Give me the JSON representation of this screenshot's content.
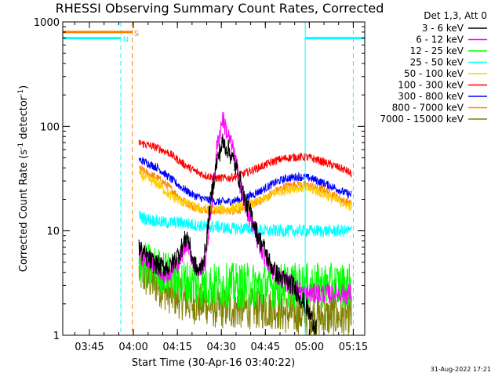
{
  "chart_data": {
    "type": "line",
    "title": "RHESSI Observing Summary Count Rates, Corrected",
    "xlabel": "Start Time (30-Apr-16 03:40:22)",
    "ylabel_main": "Corrected Count Rate (s",
    "ylabel_sup1": "-1",
    "ylabel_mid": " detector",
    "ylabel_sup2": "-1",
    "ylabel_end": ")",
    "yscale": "log",
    "ylim": [
      1,
      1000
    ],
    "xlim_minutes": [
      -4.5,
      98.5
    ],
    "x_origin_label": "03:40:22",
    "xticks": [
      {
        "label": "03:45",
        "minute": 4.6
      },
      {
        "label": "04:00",
        "minute": 19.6
      },
      {
        "label": "04:15",
        "minute": 34.6
      },
      {
        "label": "04:30",
        "minute": 49.6
      },
      {
        "label": "04:45",
        "minute": 64.6
      },
      {
        "label": "05:00",
        "minute": 79.6
      },
      {
        "label": "05:15",
        "minute": 94.6
      }
    ],
    "yticks": [
      {
        "label": "1",
        "value": 1
      },
      {
        "label": "10",
        "value": 10
      },
      {
        "label": "100",
        "value": 100
      },
      {
        "label": "1000",
        "value": 1000
      }
    ],
    "legend_position": "right",
    "legend_header": "Det 1,3, Att 0",
    "series": [
      {
        "name": "3 - 6 keV",
        "color": "#000000",
        "x": [
          21.5,
          23,
          26,
          29,
          32,
          35,
          38,
          40,
          42,
          44,
          46,
          48,
          50,
          52,
          54,
          56,
          58,
          60,
          62,
          64,
          66,
          68,
          70,
          74,
          78,
          80,
          82
        ],
        "y": [
          7,
          6,
          5,
          4.5,
          4.5,
          6,
          9,
          5,
          4,
          6,
          20,
          45,
          70,
          60,
          45,
          30,
          18,
          14,
          9,
          7,
          5,
          4,
          3.5,
          3,
          2,
          1.5,
          1.2
        ]
      },
      {
        "name": "6 - 12 keV",
        "color": "#ff00ff",
        "x": [
          21.5,
          23,
          26,
          29,
          32,
          35,
          38,
          40,
          42,
          44,
          46,
          48,
          50,
          52,
          54,
          56,
          58,
          60,
          62,
          64,
          66,
          68,
          70,
          74,
          78,
          82,
          86,
          90,
          94
        ],
        "y": [
          6,
          5.5,
          5,
          4,
          4,
          5,
          8,
          5,
          4,
          5,
          15,
          60,
          120,
          80,
          55,
          28,
          16,
          12,
          8,
          6,
          4.5,
          4,
          3.5,
          3,
          2.5,
          2.5,
          2.5,
          2.5,
          2.5
        ]
      },
      {
        "name": "12 - 25 keV",
        "color": "#00ff00",
        "x": [
          21.5,
          26,
          30,
          34,
          38,
          42,
          46,
          50,
          54,
          58,
          62,
          66,
          70,
          74,
          78,
          82,
          86,
          90,
          94
        ],
        "y": [
          5,
          4.5,
          4,
          3.5,
          3.2,
          3,
          3,
          3,
          3,
          3,
          3,
          3,
          3,
          3,
          3,
          3,
          3,
          3,
          3
        ]
      },
      {
        "name": "25 - 50 keV",
        "color": "#00ffff",
        "x": [
          21.5,
          24,
          27,
          30,
          33,
          36,
          40,
          44,
          48,
          52,
          56,
          60,
          64,
          68,
          72,
          76,
          80,
          84,
          88,
          92,
          94
        ],
        "y": [
          14,
          13,
          12.5,
          12,
          12,
          12,
          11.5,
          11,
          11,
          10.5,
          10.5,
          10.5,
          10,
          10,
          10,
          10,
          10,
          10,
          10,
          10,
          10
        ]
      },
      {
        "name": "50 - 100 keV",
        "color": "#ffcc00",
        "x": [
          21.5,
          24,
          28,
          32,
          36,
          40,
          44,
          48,
          52,
          56,
          60,
          64,
          68,
          72,
          76,
          80,
          84,
          88,
          92,
          94
        ],
        "y": [
          35,
          32,
          28,
          22,
          19,
          17,
          16,
          16,
          16,
          17,
          18,
          20,
          23,
          25,
          26,
          25,
          23,
          20,
          18,
          17
        ]
      },
      {
        "name": "100 - 300 keV",
        "color": "#ff0000",
        "x": [
          21.5,
          24,
          28,
          32,
          36,
          40,
          44,
          48,
          52,
          56,
          60,
          64,
          68,
          72,
          76,
          80,
          84,
          88,
          92,
          94
        ],
        "y": [
          70,
          67,
          62,
          55,
          45,
          38,
          34,
          32,
          32,
          34,
          38,
          42,
          47,
          50,
          51,
          50,
          46,
          42,
          38,
          35
        ]
      },
      {
        "name": "300 - 800 keV",
        "color": "#0000ff",
        "x": [
          21.5,
          24,
          28,
          32,
          36,
          40,
          44,
          48,
          52,
          56,
          60,
          64,
          68,
          72,
          76,
          80,
          84,
          88,
          92,
          94
        ],
        "y": [
          48,
          45,
          40,
          32,
          26,
          22,
          20,
          19,
          19,
          20,
          22,
          25,
          29,
          32,
          33,
          32,
          29,
          26,
          23,
          22
        ]
      },
      {
        "name": "800 - 7000 keV",
        "color": "#ff8000",
        "x": [
          21.5,
          24,
          28,
          32,
          36,
          40,
          44,
          48,
          52,
          56,
          60,
          64,
          68,
          72,
          76,
          80,
          84,
          88,
          92,
          94
        ],
        "y": [
          40,
          36,
          32,
          26,
          20,
          17,
          16,
          15.5,
          15.5,
          16,
          18,
          20,
          24,
          27,
          28,
          27,
          25,
          22,
          19,
          18
        ]
      },
      {
        "name": "7000 - 15000 keV",
        "color": "#808000",
        "x": [
          21.5,
          24,
          28,
          32,
          36,
          40,
          44,
          48,
          52,
          56,
          60,
          64,
          68,
          72,
          76,
          80,
          84,
          88,
          92,
          94
        ],
        "y": [
          4,
          3.5,
          3,
          2.5,
          2.2,
          2,
          2,
          1.8,
          1.8,
          1.8,
          1.8,
          1.8,
          1.8,
          1.6,
          1.6,
          1.5,
          1.5,
          1.5,
          1.5,
          1.5
        ]
      }
    ],
    "intervals": [
      {
        "label": "N",
        "color": "#00ffff",
        "level": 700,
        "start_minute": -4.5,
        "end_minute": 15.3,
        "label_minute": 16.0
      },
      {
        "label": "S",
        "color": "#ff8000",
        "level": 800,
        "start_minute": -4.5,
        "end_minute": 19.2,
        "label_minute": 19.8
      },
      {
        "label": "",
        "color": "#00ffff",
        "level": 700,
        "start_minute": 78.2,
        "end_minute": 98.5,
        "label_minute": 78.2
      }
    ],
    "vertical_markers": [
      {
        "minute": 15.3,
        "color": "#00ffff",
        "style": "dashed"
      },
      {
        "minute": 19.2,
        "color": "#ff8000",
        "style": "dashed"
      },
      {
        "minute": 78.2,
        "color": "#00ffff",
        "style": "solid"
      },
      {
        "minute": 94.6,
        "color": "#00ffff",
        "style": "dashed"
      }
    ]
  },
  "footer": {
    "timestamp": "31-Aug-2022 17:21"
  }
}
